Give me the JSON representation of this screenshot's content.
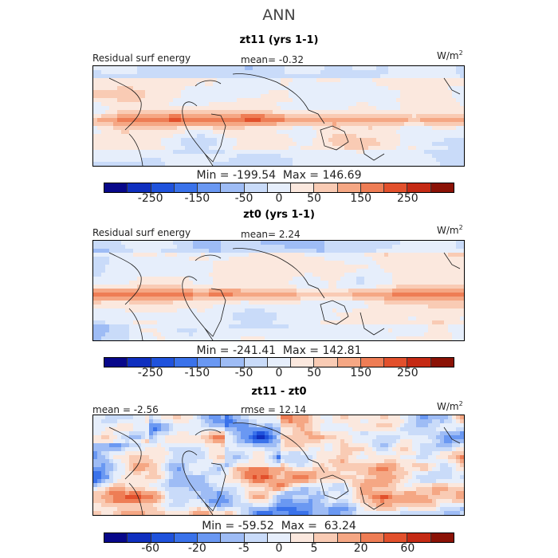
{
  "title": "ANN",
  "colors": [
    "#08088a",
    "#0f2fbf",
    "#1f52dc",
    "#3a72ea",
    "#6a98f2",
    "#9ebcf5",
    "#c9dbf9",
    "#e6eefb",
    "#fbe8de",
    "#f9cbb4",
    "#f5a784",
    "#ee7d55",
    "#e2502c",
    "#c52a14",
    "#8b1206"
  ],
  "coast_color": "#1a1a1a",
  "panels": [
    {
      "title": "zt11 (yrs 1-1)",
      "left_label": "Residual surf energy",
      "center_label": "mean=   -0.32",
      "units": "W/m",
      "units_sup": "2",
      "minmax": "Min = -199.54  Max = 146.69",
      "ticks": [
        "-250",
        "-150",
        "-50",
        "0",
        "50",
        "150",
        "250"
      ],
      "style": "mean"
    },
    {
      "title": "zt0 (yrs 1-1)",
      "left_label": "Residual surf energy",
      "center_label": "mean=    2.24",
      "units": "W/m",
      "units_sup": "2",
      "minmax": "Min = -241.41  Max = 142.81",
      "ticks": [
        "-250",
        "-150",
        "-50",
        "0",
        "50",
        "150",
        "250"
      ],
      "style": "mean"
    },
    {
      "title": "zt11 - zt0",
      "left_label": "mean =   -2.56",
      "center_label": "rmse =   12.14",
      "units": "W/m",
      "units_sup": "2",
      "minmax": "Min = -59.52  Max =  63.24",
      "ticks": [
        "-60",
        "-20",
        "-5",
        "0",
        "5",
        "20",
        "60"
      ],
      "style": "diff"
    }
  ]
}
